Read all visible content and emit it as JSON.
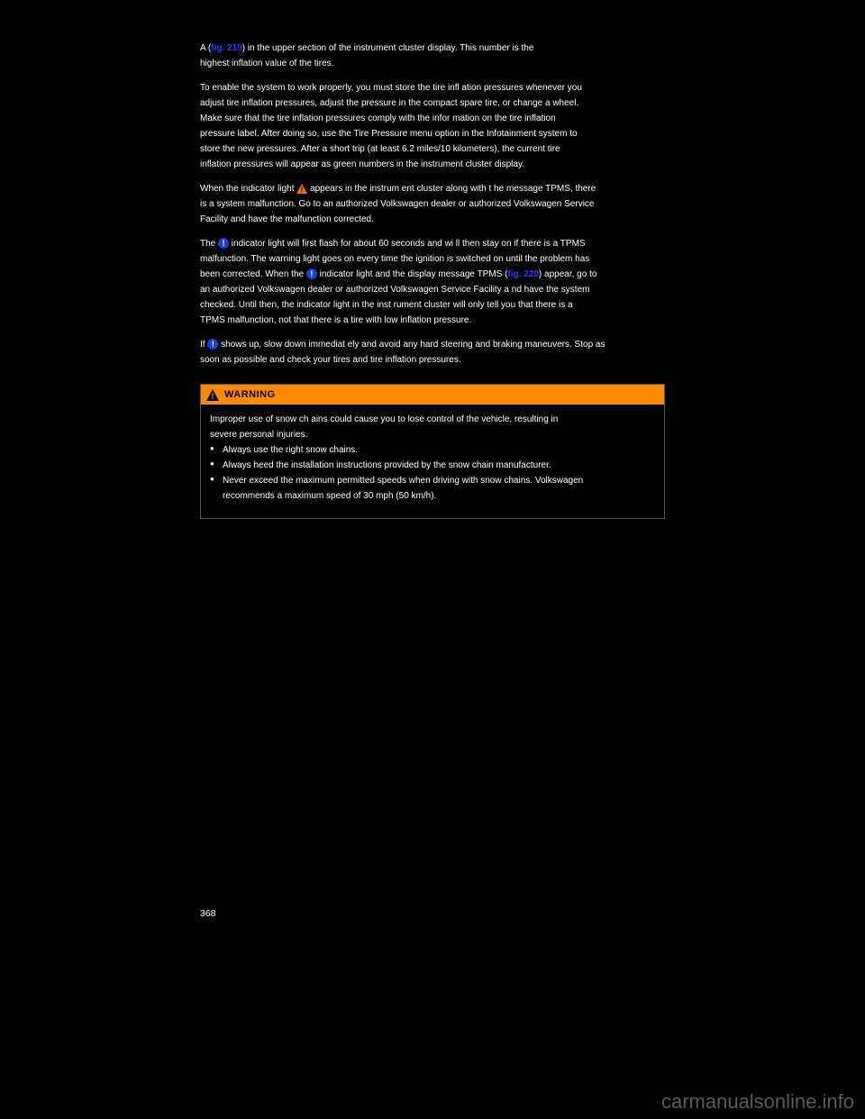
{
  "doc": {
    "p1": "A (",
    "fig219a": "fig. 219",
    "p1b": ") in the upper section of the instrument cluster display. This nu",
    "p1c": "mber is the",
    "p2": "highest inflation value of the t",
    "p2b": "ires.",
    "p3": "To enable the s",
    "p3b": "ystem to work properly, you must store the tire infl ation pressures whenever you",
    "p4": "adjust tire inflation pressures, adjust the pressu",
    "p4b": "re in the compact spare tire, or change a wheel.",
    "p5": "Make sure that the tire inflation pressures c",
    "p5b": "omply with the infor mation on the tire inflation",
    "p6": "pressure label. After doing so, use the Tire Pres",
    "p6b": "sure menu  option in the Infotainment system to",
    "p7": "store the new pressures. After a short trip (at lea",
    "p7b": "st 6.2 miles/10 kilometers), the current tire",
    "p8": "inflation pressures will appear as green numbers in the instrument cluster display.",
    "p9a": "When the indicator light ",
    "p9b": " appears in the instrum ent cluster along with t he message TPMS, there",
    "p10": "is a system malfunction. Go to an authorized Volksw",
    "p10b": "agen dealer or authorized Volkswagen Service",
    "p11": "Facility and have the malfunction corrected.",
    "p12a": "The ",
    "p12b": " indicator light will first flash for about 60 seconds and wi ll then stay on if there is a TPMS",
    "p13": "malfunction. The warning light goes on every time the ignition is switched on until the problem has",
    "p14a": "been corrected. When the ",
    "p14b": " indicator light and the display message TPMS (",
    "fig220": "fig. 220",
    "p14c": ") appear, go to",
    "p15": "an authorized Volkswagen dealer or authorized Volk",
    "p15b": "swagen Service Facility a nd have the system",
    "p16": "checked. Until then, the indicator light  in the inst rument cluster will only ",
    "p16b": "tell you that there is a",
    "p17": "TPMS malfunction, not that there is a tire with low inflation pressure.",
    "p18a": "If ",
    "p18b": " shows up, slow down immediat ely and avoid any hard steering and braking maneuvers. Stop as",
    "p19": "soon as possible and check your tires and tire inflation pressures.",
    "warningLabel": "WARNING",
    "warnP1": "Improper use of snow ch ains could cause you to lose control of the vehicle, resulting in",
    "warnP1b": "severe personal injuries.",
    "bullets": [
      {
        "t": "Always use the right snow chains.",
        "lines": []
      },
      {
        "t": "Always heed the installation instructions provided by the snow chain manufacturer.",
        "lines": []
      },
      {
        "t": "Never exceed the maximum permitted speeds  when driving with snow chains. Volkswagen",
        "lines": [
          "recommends a maximum speed of 30 mph (50 km/h)."
        ]
      }
    ],
    "pageNum": "368",
    "watermark": "carmanualsonline.info",
    "colors": {
      "link": "#2040ff",
      "warningBg": "#ff8a00",
      "infoBg": "#1a3fd1",
      "warnTriFill": "#ff6a00",
      "warnTriBorder": "#000"
    }
  }
}
